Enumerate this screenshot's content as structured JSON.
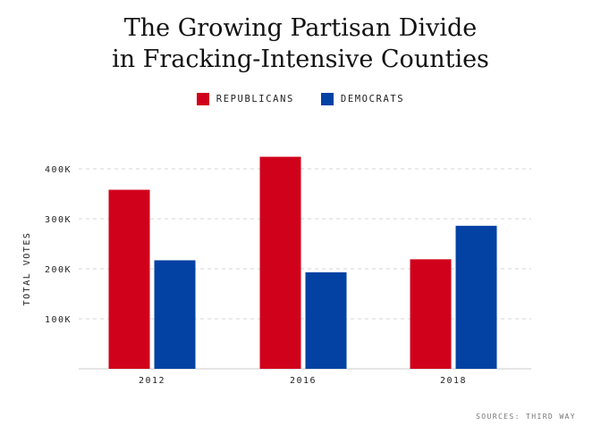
{
  "chart_data": {
    "type": "bar",
    "title_lines": [
      "The Growing Partisan Divide",
      "in Fracking-Intensive Counties"
    ],
    "categories": [
      "2012",
      "2016",
      "2018"
    ],
    "series": [
      {
        "name": "REPUBLICANS",
        "color": "#d0021b",
        "values": [
          358000,
          424000,
          219000
        ]
      },
      {
        "name": "DEMOCRATS",
        "color": "#0341a3",
        "values": [
          217000,
          193000,
          286000
        ]
      }
    ],
    "ylabel": "TOTAL VOTES",
    "ylim": [
      0,
      450000
    ],
    "yticks": [
      100000,
      200000,
      300000,
      400000
    ],
    "ytick_labels": [
      "100K",
      "200K",
      "300K",
      "400K"
    ],
    "grid": true,
    "legend": "top-center",
    "source": "SOURCES: THIRD WAY"
  }
}
